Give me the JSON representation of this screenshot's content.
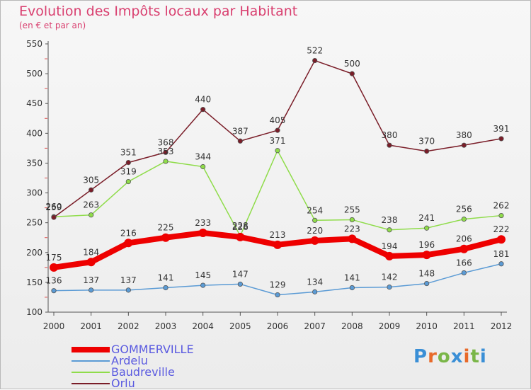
{
  "chart_data": {
    "type": "line",
    "title": "Evolution des Impôts locaux par Habitant",
    "subtitle": "(en € et par an)",
    "categories": [
      "2000",
      "2001",
      "2002",
      "2003",
      "2004",
      "2005",
      "2006",
      "2007",
      "2008",
      "2009",
      "2010",
      "2011",
      "2012"
    ],
    "ylim": [
      100,
      550
    ],
    "yticks": [
      100,
      150,
      200,
      250,
      300,
      350,
      400,
      450,
      500,
      550
    ],
    "grid": false,
    "legend_position": "bottom-left",
    "series": [
      {
        "name": "GOMMERVILLE",
        "color": "#ee0000",
        "values": [
          175,
          184,
          216,
          225,
          233,
          226,
          213,
          220,
          223,
          194,
          196,
          206,
          222
        ]
      },
      {
        "name": "Ardelu",
        "color": "#5b9bd5",
        "values": [
          136,
          137,
          137,
          141,
          145,
          147,
          129,
          134,
          141,
          142,
          148,
          166,
          181
        ]
      },
      {
        "name": "Baudreville",
        "color": "#8fdc4a",
        "values": [
          260,
          263,
          319,
          353,
          344,
          228,
          371,
          254,
          255,
          238,
          241,
          256,
          262
        ]
      },
      {
        "name": "Orlu",
        "color": "#7a1d28",
        "values": [
          259,
          305,
          351,
          368,
          440,
          387,
          405,
          522,
          500,
          380,
          370,
          380,
          391
        ]
      }
    ]
  },
  "logo": {
    "text": "Proxiti"
  }
}
